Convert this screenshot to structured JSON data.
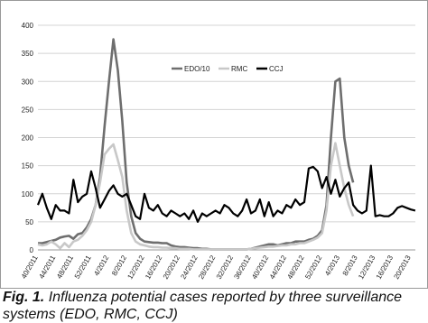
{
  "chart_data": {
    "type": "line",
    "categories": [
      "40/2011",
      null,
      null,
      null,
      "44/2011",
      null,
      null,
      null,
      "48/2011",
      null,
      null,
      null,
      "52/2011",
      null,
      null,
      null,
      "4/2012",
      null,
      null,
      null,
      "8/2012",
      null,
      null,
      null,
      "12/2012",
      null,
      null,
      null,
      "16/2012",
      null,
      null,
      null,
      "20/2012",
      null,
      null,
      null,
      "24/2012",
      null,
      null,
      null,
      "28/2012",
      null,
      null,
      null,
      "32/2012",
      null,
      null,
      null,
      "36/2012",
      null,
      null,
      null,
      "40/2012",
      null,
      null,
      null,
      "44/2012",
      null,
      null,
      null,
      "48/2012",
      null,
      null,
      null,
      "52/2012",
      null,
      null,
      null,
      "4/2013",
      null,
      null,
      null,
      "8/2013",
      null,
      null,
      null,
      "12/2013",
      null,
      null,
      null,
      "16/2013",
      null,
      null,
      null,
      "20/2013",
      null
    ],
    "series": [
      {
        "name": "EDO/10",
        "color": "#6e6e6e",
        "values": [
          12,
          12,
          14,
          16,
          18,
          22,
          24,
          25,
          20,
          28,
          30,
          40,
          55,
          80,
          130,
          220,
          300,
          375,
          320,
          230,
          120,
          60,
          30,
          20,
          15,
          14,
          13,
          13,
          12,
          12,
          8,
          6,
          5,
          5,
          4,
          3,
          3,
          2,
          2,
          1,
          1,
          1,
          1,
          1,
          1,
          1,
          1,
          1,
          2,
          4,
          6,
          8,
          10,
          10,
          8,
          10,
          12,
          12,
          15,
          15,
          15,
          18,
          20,
          25,
          35,
          80,
          200,
          300,
          305,
          200,
          150,
          120,
          null,
          null,
          null,
          null,
          null,
          null,
          null,
          null,
          null,
          null,
          null,
          null,
          null,
          null
        ]
      },
      {
        "name": "RMC",
        "color": "#c8c8c8",
        "values": [
          10,
          8,
          10,
          15,
          10,
          3,
          12,
          5,
          15,
          18,
          25,
          35,
          50,
          80,
          120,
          170,
          180,
          188,
          160,
          130,
          70,
          30,
          15,
          10,
          8,
          6,
          5,
          5,
          4,
          4,
          3,
          3,
          2,
          2,
          2,
          1,
          1,
          1,
          1,
          1,
          1,
          1,
          1,
          1,
          1,
          1,
          1,
          1,
          2,
          3,
          4,
          5,
          6,
          6,
          7,
          8,
          8,
          10,
          10,
          12,
          12,
          15,
          18,
          22,
          30,
          70,
          150,
          190,
          150,
          110,
          80,
          60,
          null,
          null,
          null,
          null,
          null,
          null,
          null,
          null,
          null,
          null,
          null,
          null,
          null,
          null
        ]
      },
      {
        "name": "CCJ",
        "color": "#000000",
        "values": [
          80,
          100,
          75,
          55,
          80,
          70,
          70,
          65,
          125,
          85,
          95,
          100,
          140,
          110,
          75,
          90,
          105,
          115,
          100,
          95,
          100,
          80,
          60,
          55,
          100,
          75,
          70,
          80,
          65,
          60,
          70,
          65,
          60,
          65,
          55,
          70,
          50,
          65,
          60,
          65,
          70,
          65,
          80,
          75,
          65,
          60,
          70,
          90,
          65,
          70,
          90,
          60,
          85,
          60,
          70,
          65,
          80,
          75,
          90,
          80,
          85,
          145,
          148,
          140,
          110,
          130,
          100,
          125,
          95,
          110,
          120,
          80,
          70,
          65,
          70,
          150,
          60,
          62,
          60,
          60,
          65,
          75,
          78,
          75,
          72,
          70
        ]
      }
    ],
    "ylim": [
      0,
      400
    ],
    "yticks": [
      0,
      50,
      100,
      150,
      200,
      250,
      300,
      350,
      400
    ],
    "grid": true,
    "legend": "top"
  },
  "caption": {
    "label": "Fig. 1.",
    "text": "Influenza potential cases reported by three surveillance systems (EDO, RMC, CCJ)"
  }
}
